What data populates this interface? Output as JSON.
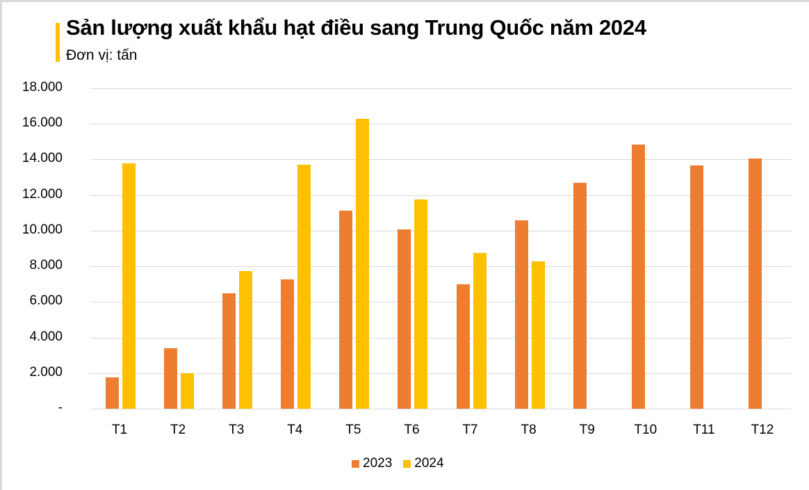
{
  "header": {
    "title": "Sản lượng xuất khẩu hạt điều sang Trung Quốc năm 2024",
    "subtitle": "Đơn vị: tấn",
    "accent_color": "#ffc000"
  },
  "y_axis": {
    "ticks": [
      "18.000",
      "16.000",
      "14.000",
      "12.000",
      "10.000",
      "8.000",
      "6.000",
      "4.000",
      "2.000",
      "-"
    ]
  },
  "legend": [
    {
      "label": "2023",
      "color": "#ed7d31"
    },
    {
      "label": "2024",
      "color": "#ffc000"
    }
  ],
  "chart_data": {
    "type": "bar",
    "title": "Sản lượng xuất khẩu hạt điều sang Trung Quốc năm 2024",
    "subtitle": "Đơn vị: tấn",
    "xlabel": "",
    "ylabel": "tấn",
    "categories": [
      "T1",
      "T2",
      "T3",
      "T4",
      "T5",
      "T6",
      "T7",
      "T8",
      "T9",
      "T10",
      "T11",
      "T12"
    ],
    "series": [
      {
        "name": "2023",
        "color": "#ed7d31",
        "values": [
          1750,
          3380,
          6480,
          7270,
          11130,
          10080,
          6990,
          10590,
          12700,
          14840,
          13670,
          14060
        ]
      },
      {
        "name": "2024",
        "color": "#ffc000",
        "values": [
          13800,
          2000,
          7730,
          13700,
          16290,
          11760,
          8750,
          8280,
          null,
          null,
          null,
          null
        ]
      }
    ],
    "ylim": [
      0,
      18000
    ],
    "ytick_step": 2000,
    "grid": true,
    "legend_position": "bottom"
  }
}
